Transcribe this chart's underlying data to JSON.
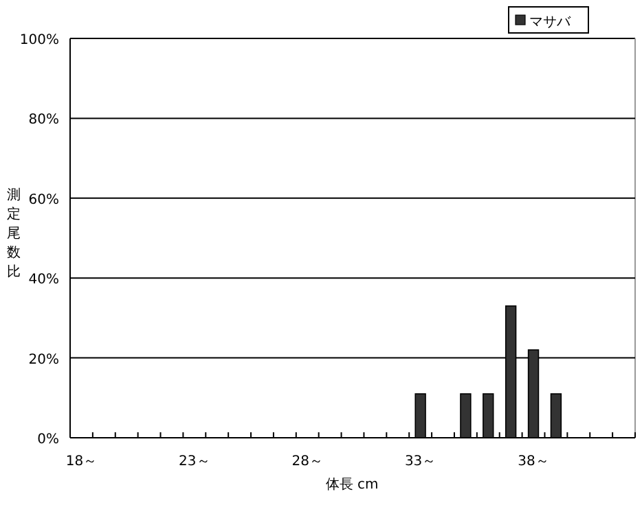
{
  "chart_data": {
    "type": "bar",
    "xlabel": "体長 cm",
    "ylabel": "測定尾数比",
    "categories": [
      "18～",
      null,
      null,
      null,
      null,
      "23～",
      null,
      null,
      null,
      null,
      "28～",
      null,
      null,
      null,
      null,
      "33～",
      null,
      null,
      null,
      null,
      "38～",
      null,
      null,
      null,
      null
    ],
    "series": [
      {
        "name": "マサバ",
        "color": "#333333",
        "values": [
          0,
          0,
          0,
          0,
          0,
          0,
          0,
          0,
          0,
          0,
          0,
          0,
          0,
          0,
          0,
          11,
          0,
          11,
          11,
          33,
          22,
          11,
          0,
          0,
          0
        ]
      }
    ],
    "ylim": [
      0,
      100
    ],
    "yticks": [
      {
        "value": 0,
        "label": "0%"
      },
      {
        "value": 20,
        "label": "20%"
      },
      {
        "value": 40,
        "label": "40%"
      },
      {
        "value": 60,
        "label": "60%"
      },
      {
        "value": 80,
        "label": "80%"
      },
      {
        "value": 100,
        "label": "100%"
      }
    ],
    "grid": "y",
    "legend": "top right"
  }
}
